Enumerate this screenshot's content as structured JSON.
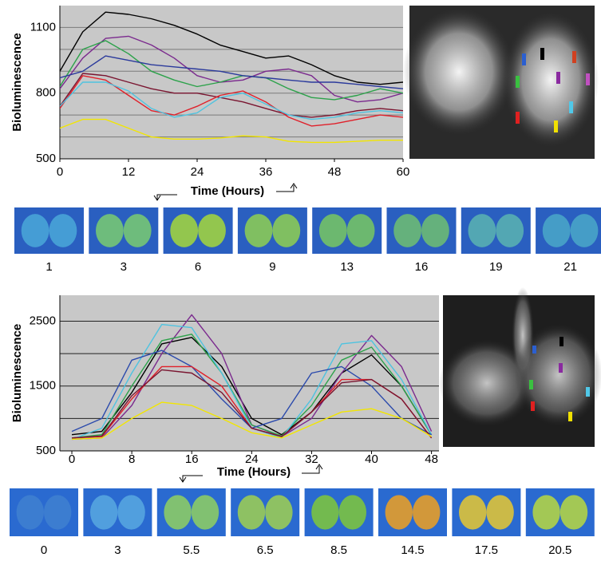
{
  "chart_data": [
    {
      "type": "line",
      "y_label": "Bioluminescence",
      "x_label": "Time (Hours)",
      "x": [
        0,
        4,
        8,
        12,
        16,
        20,
        24,
        28,
        32,
        36,
        40,
        44,
        48,
        52,
        56,
        60
      ],
      "xlim": [
        0,
        60
      ],
      "xticks": [
        0,
        12,
        24,
        36,
        48,
        60
      ],
      "ylim": [
        500,
        1200
      ],
      "yticks": [
        500,
        800,
        1100
      ],
      "minor_yticks": [
        600,
        700,
        900,
        1000
      ],
      "grid": true,
      "series": [
        {
          "color": "#000000",
          "values": [
            900,
            1080,
            1170,
            1160,
            1140,
            1110,
            1070,
            1020,
            990,
            960,
            970,
            930,
            880,
            850,
            840,
            850
          ]
        },
        {
          "color": "#7b2a8e",
          "values": [
            820,
            960,
            1050,
            1060,
            1020,
            960,
            880,
            850,
            860,
            900,
            910,
            880,
            790,
            760,
            770,
            800
          ]
        },
        {
          "color": "#2ca24a",
          "values": [
            830,
            1000,
            1040,
            980,
            900,
            860,
            830,
            850,
            880,
            870,
            820,
            780,
            770,
            790,
            820,
            800
          ]
        },
        {
          "color": "#2b3a9c",
          "values": [
            870,
            900,
            970,
            950,
            930,
            920,
            910,
            900,
            880,
            870,
            860,
            850,
            850,
            840,
            830,
            820
          ]
        },
        {
          "color": "#7a1530",
          "values": [
            740,
            890,
            880,
            850,
            820,
            800,
            800,
            780,
            760,
            730,
            700,
            690,
            700,
            720,
            730,
            720
          ]
        },
        {
          "color": "#e0202a",
          "values": [
            730,
            880,
            860,
            790,
            720,
            700,
            740,
            790,
            810,
            760,
            690,
            650,
            660,
            680,
            700,
            690
          ]
        },
        {
          "color": "#4ec3e0",
          "values": [
            740,
            850,
            850,
            810,
            730,
            690,
            710,
            780,
            800,
            750,
            700,
            680,
            690,
            710,
            720,
            710
          ]
        },
        {
          "color": "#f2e600",
          "values": [
            640,
            680,
            680,
            640,
            600,
            590,
            590,
            595,
            605,
            600,
            580,
            575,
            575,
            580,
            585,
            585
          ]
        }
      ],
      "frame_labels": [
        1,
        3,
        6,
        9,
        13,
        16,
        19,
        21
      ]
    },
    {
      "type": "line",
      "y_label": "Bioluminescence",
      "x_label": "Time (Hours)",
      "x": [
        0,
        4,
        8,
        12,
        16,
        20,
        24,
        28,
        32,
        36,
        40,
        44,
        48
      ],
      "xlim": [
        -1.6,
        49
      ],
      "xticks": [
        0,
        8,
        16,
        24,
        32,
        40,
        48
      ],
      "ylim": [
        500,
        2900
      ],
      "yticks": [
        500,
        1500,
        2500
      ],
      "minor_yticks": [
        1000,
        2000
      ],
      "grid": true,
      "series": [
        {
          "color": "#000000",
          "values": [
            750,
            800,
            1400,
            2150,
            2250,
            1800,
            1000,
            750,
            1100,
            1700,
            1980,
            1500,
            750
          ]
        },
        {
          "color": "#7b2a8e",
          "values": [
            680,
            700,
            1200,
            2000,
            2600,
            2000,
            900,
            720,
            1000,
            1700,
            2280,
            1800,
            800
          ]
        },
        {
          "color": "#2ca24a",
          "values": [
            700,
            750,
            1500,
            2200,
            2300,
            1700,
            900,
            730,
            1200,
            1900,
            2100,
            1500,
            750
          ]
        },
        {
          "color": "#4ec3e0",
          "values": [
            680,
            850,
            1700,
            2450,
            2400,
            1700,
            850,
            700,
            1300,
            2150,
            2200,
            1600,
            750
          ]
        },
        {
          "color": "#2b4aac",
          "values": [
            800,
            1000,
            1900,
            2050,
            1800,
            1300,
            850,
            1000,
            1700,
            1800,
            1500,
            1000,
            750
          ]
        },
        {
          "color": "#e0202a",
          "values": [
            700,
            720,
            1300,
            1800,
            1800,
            1500,
            850,
            720,
            1100,
            1600,
            1600,
            1300,
            700
          ]
        },
        {
          "color": "#7a1530",
          "values": [
            700,
            730,
            1350,
            1750,
            1700,
            1400,
            850,
            720,
            1100,
            1550,
            1600,
            1300,
            700
          ]
        },
        {
          "color": "#f2e600",
          "values": [
            680,
            700,
            1000,
            1250,
            1200,
            1000,
            780,
            700,
            900,
            1100,
            1150,
            1000,
            720
          ]
        }
      ],
      "frame_labels": [
        0,
        3,
        5.5,
        6.5,
        8.5,
        14.5,
        17.5,
        20.5
      ]
    }
  ]
}
